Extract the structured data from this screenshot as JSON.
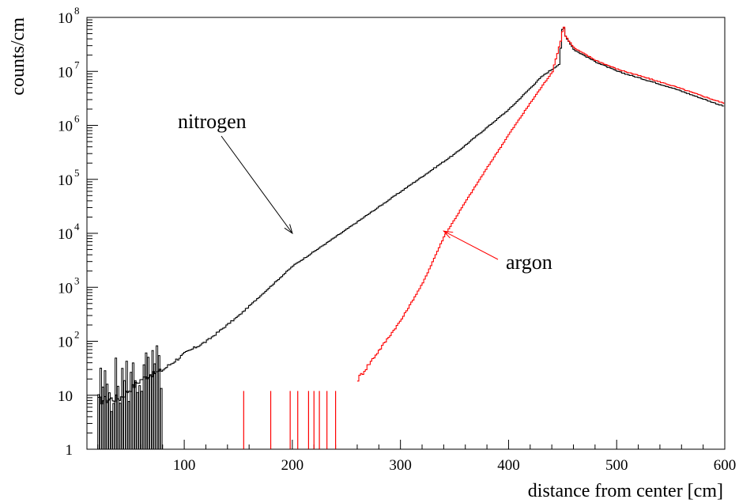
{
  "chart_data": {
    "type": "line",
    "xlabel": "distance from center [cm]",
    "ylabel": "counts/cm",
    "xlim": [
      10,
      600
    ],
    "ylim": [
      1,
      100000000
    ],
    "yscale": "log",
    "grid": false,
    "x_ticks": [
      {
        "value": 100,
        "label": "100"
      },
      {
        "value": 200,
        "label": "200"
      },
      {
        "value": 300,
        "label": "300"
      },
      {
        "value": 400,
        "label": "400"
      },
      {
        "value": 500,
        "label": "500"
      },
      {
        "value": 600,
        "label": "600"
      }
    ],
    "y_ticks": [
      {
        "value": 1,
        "base": "1",
        "exp": ""
      },
      {
        "value": 10,
        "base": "10",
        "exp": ""
      },
      {
        "value": 100,
        "base": "10",
        "exp": "2"
      },
      {
        "value": 1000,
        "base": "10",
        "exp": "3"
      },
      {
        "value": 10000,
        "base": "10",
        "exp": "4"
      },
      {
        "value": 100000,
        "base": "10",
        "exp": "5"
      },
      {
        "value": 1000000,
        "base": "10",
        "exp": "6"
      },
      {
        "value": 10000000,
        "base": "10",
        "exp": "7"
      },
      {
        "value": 100000000,
        "base": "10",
        "exp": "8"
      }
    ],
    "series": [
      {
        "name": "nitrogen",
        "color": "#000000",
        "points": [
          [
            20,
            8
          ],
          [
            40,
            9
          ],
          [
            60,
            20
          ],
          [
            80,
            30
          ],
          [
            100,
            60
          ],
          [
            120,
            100
          ],
          [
            150,
            300
          ],
          [
            200,
            2500
          ],
          [
            250,
            12000
          ],
          [
            300,
            60000
          ],
          [
            350,
            300000
          ],
          [
            400,
            2000000
          ],
          [
            430,
            8000000
          ],
          [
            447,
            14000000
          ],
          [
            448,
            50000000
          ],
          [
            450,
            70000000
          ],
          [
            452,
            45000000
          ],
          [
            460,
            25000000
          ],
          [
            480,
            15000000
          ],
          [
            500,
            10000000
          ],
          [
            550,
            5000000
          ],
          [
            600,
            2200000
          ]
        ]
      },
      {
        "name": "argon",
        "color": "#ff0000",
        "points": [
          [
            260,
            20
          ],
          [
            280,
            70
          ],
          [
            300,
            250
          ],
          [
            320,
            1200
          ],
          [
            340,
            9000
          ],
          [
            360,
            40000
          ],
          [
            380,
            170000
          ],
          [
            400,
            700000
          ],
          [
            420,
            2700000
          ],
          [
            440,
            10000000
          ],
          [
            448,
            40000000
          ],
          [
            450,
            75000000
          ],
          [
            452,
            45000000
          ],
          [
            460,
            27000000
          ],
          [
            480,
            16000000
          ],
          [
            500,
            11000000
          ],
          [
            550,
            5500000
          ],
          [
            600,
            2500000
          ]
        ],
        "sparse_spikes": [
          [
            155,
            12
          ],
          [
            180,
            12
          ],
          [
            198,
            12
          ],
          [
            205,
            12
          ],
          [
            215,
            12
          ],
          [
            220,
            12
          ],
          [
            225,
            12
          ],
          [
            232,
            12
          ],
          [
            240,
            12
          ]
        ]
      }
    ],
    "annotations": [
      {
        "text": "nitrogen",
        "series": "nitrogen",
        "arrow_to": [
          200,
          10000
        ]
      },
      {
        "text": "argon",
        "series": "argon",
        "arrow_to": [
          340,
          11000
        ]
      }
    ]
  }
}
